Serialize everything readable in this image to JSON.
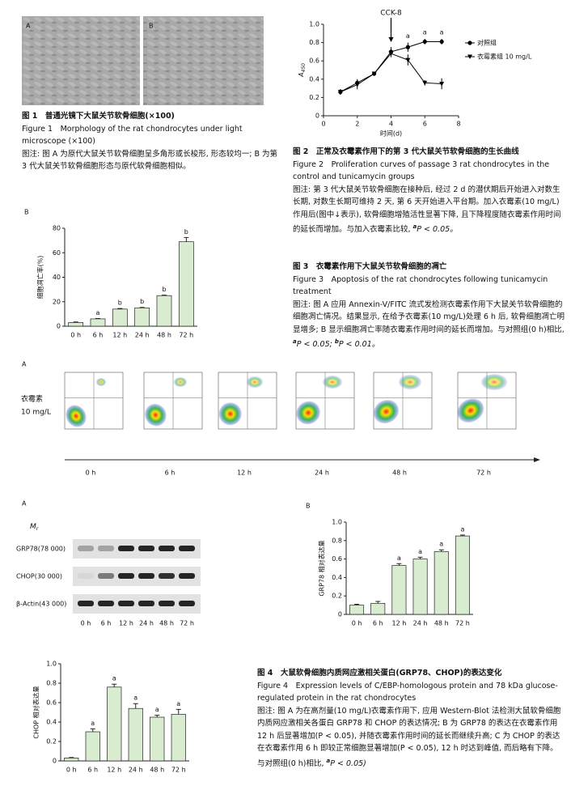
{
  "fig1": {
    "panel_a": "A",
    "panel_b": "B",
    "title": "图 1　普通光镜下大鼠关节软骨细胞(×100)",
    "title_en": "Figure 1　Morphology of the rat chondrocytes under light microscope (×100)",
    "note": "图注: 图 A 为原代大鼠关节软骨细胞呈多角形或长梭形, 形态较均一; B 为第 3 代大鼠关节软骨细胞形态与原代软骨细胞相似。"
  },
  "fig2_caption": {
    "title": "图 2　正常及衣霉素作用下的第 3 代大鼠关节软骨细胞的生长曲线",
    "title_en": "Figure 2　Proliferation curves of passage 3 rat chondrocytes in the control and tunicamycin groups",
    "note": "图注: 第 3 代大鼠关节软骨细胞在接种后, 经过 2 d 的潜伏期后开始进入对数生长期, 对数生长期可维持 2 天, 第 6 天开始进入平台期。加入衣霉素(10 mg/L)作用后(图中↓表示), 软骨细胞增殖活性显著下降, 且下降程度随衣霉素作用时间的延长而增加。与加入衣霉素比较, ",
    "sig": "a",
    "p": "P < 0.05。"
  },
  "fig3_caption": {
    "title": "图 3　衣霉素作用下大鼠关节软骨细胞的凋亡",
    "title_en": "Figure 3　Apoptosis of the rat chondrocytes following tunicamycin treatment",
    "note": "图注: 图 A 应用 Annexin-V/FITC 流式发检测衣霉素作用下大鼠关节软骨细胞的细胞凋亡情况。结果显示, 在给予衣霉素(10 mg/L)处理 6 h 后, 软骨细胞凋亡明显增多; B 显示细胞凋亡率随衣霉素作用时间的延长而增加。与对照组(0 h)相比, ",
    "sig_a": "a",
    "p_a": "P < 0.05; ",
    "sig_b": "b",
    "p_b": "P < 0.01。"
  },
  "fig3_flow": {
    "panel": "A",
    "treatment": "衣霉素",
    "dose": "10 mg/L",
    "times": [
      "0 h",
      "6 h",
      "12 h",
      "24 h",
      "48 h",
      "72 h"
    ]
  },
  "fig4_blot": {
    "panel": "A",
    "mr": "M",
    "mr_sub": "r",
    "rows": [
      "GRP78(78 000)",
      "CHOP(30 000)",
      "β-Actin(43 000)"
    ],
    "lanes": [
      "0 h",
      "6 h",
      "12 h",
      "24 h",
      "48 h",
      "72 h"
    ]
  },
  "fig4_caption": {
    "title": "图 4　大鼠软骨细胞内质网应激相关蛋白(GRP78、CHOP)的表达变化",
    "title_en": "Figure 4　Expression levels of C/EBP-homologous protein and 78 kDa glucose-regulated protein in the rat chondrocytes",
    "note": "图注: 图 A 为在高剂量(10 mg/L)衣霉素作用下, 应用 Western-Blot 法检测大鼠软骨细胞内质网应激相关各蛋白 GRP78 和 CHOP 的表达情况; B 为 GRP78 的表达在衣霉素作用 12 h 后显著增加(P < 0.05), 并随衣霉素作用时间的延长而继续升高; C 为 CHOP 的表达在衣霉素作用 6 h 即较正常细胞显著增加(P < 0.05), 12 h 时达到峰值, 而后略有下降。与对照组(0 h)相比, ",
    "sig": "a",
    "p": "P < 0.05)"
  },
  "chart_data": [
    {
      "type": "line",
      "annotation": "CCK-8",
      "annotation_x": 4,
      "xlabel": "时间(d)",
      "ylabel": "A",
      "ylabel_sub": "450",
      "x": [
        1,
        2,
        3,
        4,
        5,
        6,
        7
      ],
      "xlim": [
        0,
        8
      ],
      "xticks": [
        0,
        2,
        4,
        6,
        8
      ],
      "ylim": [
        0,
        1
      ],
      "yticks": [
        0,
        0.2,
        0.4,
        0.6,
        0.8,
        {
          "value": 1,
          "label": "1.0"
        }
      ],
      "series": [
        {
          "name": "对照组",
          "color": "#000000",
          "marker": "circle",
          "values": [
            0.26,
            0.36,
            0.46,
            0.7,
            0.75,
            0.81,
            0.81
          ],
          "errors": [
            0.03,
            0.04,
            0.02,
            0.05,
            0.05,
            0.03,
            0.03
          ],
          "sig_labels": [
            null,
            null,
            null,
            null,
            "a",
            "a",
            "a"
          ]
        },
        {
          "name": "衣霉素组 10 mg/L",
          "color": "#000000",
          "marker": "triangle",
          "values": [
            0.26,
            0.34,
            0.46,
            0.68,
            0.61,
            0.36,
            0.35
          ],
          "errors": [
            0.03,
            0.05,
            0.02,
            0.04,
            0.06,
            0.03,
            0.06
          ]
        }
      ]
    },
    {
      "type": "bar",
      "panel": "B",
      "ylabel": "细胞凋亡率(%)",
      "categories": [
        "0 h",
        "6 h",
        "12 h",
        "24 h",
        "48 h",
        "72 h"
      ],
      "values": [
        3,
        6,
        14,
        15,
        25,
        69
      ],
      "errors": [
        0.5,
        0.3,
        0.5,
        0.4,
        0.4,
        3.5
      ],
      "sig_labels": [
        null,
        "a",
        "b",
        "b",
        "b",
        "b"
      ],
      "color": "#d9ecd0",
      "ylim": [
        0,
        80
      ],
      "yticks": [
        0,
        20,
        40,
        60,
        80
      ]
    },
    {
      "type": "bar",
      "panel": "B",
      "ylabel": "GRP78 相对表达量",
      "categories": [
        "0 h",
        "6 h",
        "12 h",
        "24 h",
        "48 h",
        "72 h"
      ],
      "values": [
        0.1,
        0.12,
        0.53,
        0.6,
        0.68,
        0.85
      ],
      "errors": [
        0.01,
        0.02,
        0.02,
        0.02,
        0.02,
        0.01
      ],
      "sig_labels": [
        null,
        null,
        "a",
        "a",
        "a",
        "a"
      ],
      "color": "#d9ecd0",
      "ylim": [
        0,
        1
      ],
      "yticks": [
        0,
        0.2,
        0.4,
        0.6,
        0.8,
        {
          "value": 1,
          "label": "1.0"
        }
      ]
    },
    {
      "type": "bar",
      "ylabel": "CHOP 相对表达量",
      "categories": [
        "0 h",
        "6 h",
        "12 h",
        "24 h",
        "48 h",
        "72 h"
      ],
      "values": [
        0.03,
        0.3,
        0.76,
        0.54,
        0.45,
        0.48
      ],
      "errors": [
        0.005,
        0.03,
        0.03,
        0.05,
        0.02,
        0.05
      ],
      "sig_labels": [
        null,
        "a",
        "a",
        "a",
        "a",
        "a"
      ],
      "color": "#d9ecd0",
      "ylim": [
        0,
        1
      ],
      "yticks": [
        0,
        0.2,
        0.4,
        0.6,
        0.8,
        {
          "value": 1,
          "label": "1.0"
        }
      ]
    }
  ]
}
